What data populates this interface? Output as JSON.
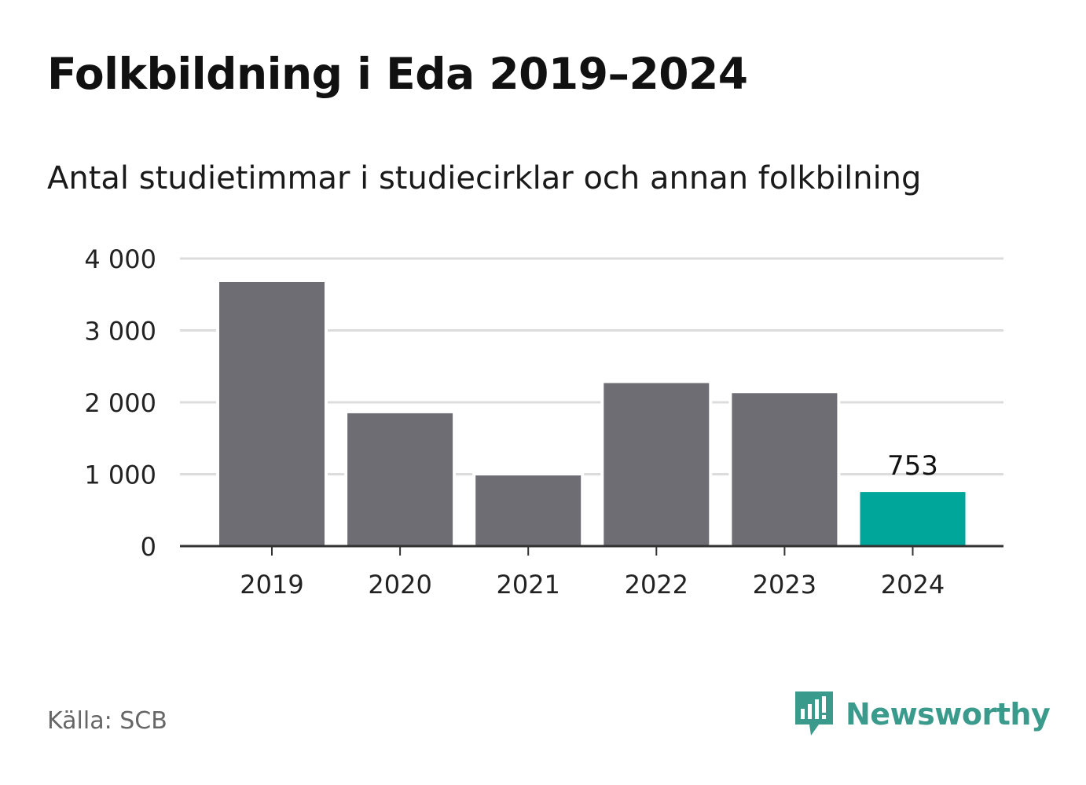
{
  "title": "Folkbildning i Eda 2019–2024",
  "subtitle": "Antal studietimmar i studiecirklar och annan folkbilning",
  "source": "Källa: SCB",
  "brand": {
    "name": "Newsworthy",
    "icon": "newsworthy-logo-icon",
    "color": "#3a9a8c"
  },
  "colors": {
    "bar": "#6e6d73",
    "highlight": "#00a69a",
    "grid": "#dcdcdc",
    "axis": "#333333"
  },
  "chart_data": {
    "type": "bar",
    "title": "Folkbildning i Eda 2019–2024",
    "subtitle": "Antal studietimmar i studiecirklar och annan folkbilning",
    "xlabel": "",
    "ylabel": "",
    "categories": [
      "2019",
      "2020",
      "2021",
      "2022",
      "2023",
      "2024"
    ],
    "values": [
      3672,
      1848,
      983,
      2268,
      2128,
      753
    ],
    "highlight_index": 5,
    "data_labels": [
      {
        "index": 5,
        "text": "753"
      }
    ],
    "ylim": [
      0,
      4000
    ],
    "yticks": [
      0,
      1000,
      2000,
      3000,
      4000
    ],
    "ytick_labels": [
      "0",
      "1 000",
      "2 000",
      "3 000",
      "4 000"
    ],
    "grid": true,
    "legend": "none"
  }
}
